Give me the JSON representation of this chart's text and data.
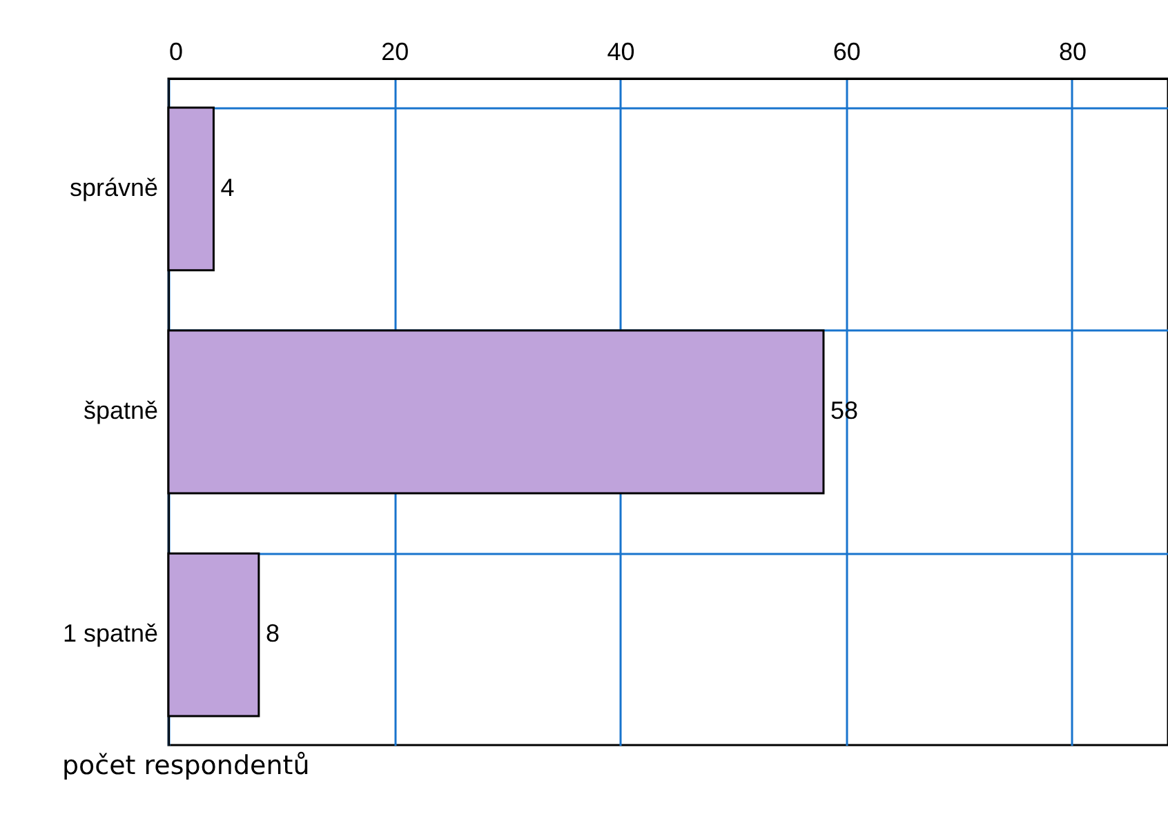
{
  "chart_data": {
    "type": "bar",
    "orientation": "horizontal",
    "xlabel": "počet respondentů",
    "categories": [
      "správně",
      "špatně",
      "1 spatně"
    ],
    "values": [
      4,
      58,
      8
    ],
    "color": "#bfa3db",
    "xlim": [
      0,
      88.5
    ],
    "xticks": [
      0,
      20,
      40,
      60,
      80
    ],
    "grid": true,
    "data_labels": true
  }
}
